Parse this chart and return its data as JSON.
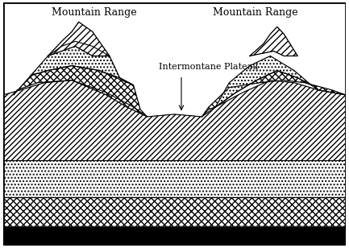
{
  "title_left": "Mountain Range",
  "title_right": "Mountain Range",
  "label_plateau": "Intermontane Plateau",
  "bg_color": "#ffffff",
  "border_color": "#000000",
  "fig_bg": "#ffffff"
}
